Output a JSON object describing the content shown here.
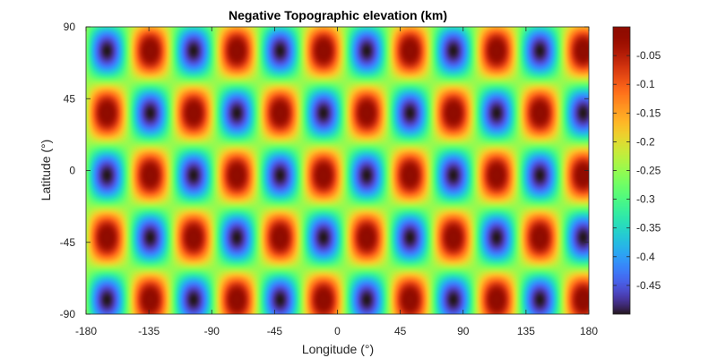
{
  "chart_data": {
    "type": "heatmap",
    "title": "Negative Topographic elevation (km)",
    "xlabel": "Longitude (°)",
    "ylabel": "Latitude (°)",
    "xlim": [
      -180,
      180
    ],
    "ylim": [
      -90,
      90
    ],
    "x_ticks": [
      -180,
      -135,
      -90,
      -45,
      0,
      45,
      90,
      135,
      180
    ],
    "x_tick_labels": [
      "-180",
      "-135",
      "-90",
      "-45",
      "0",
      "45",
      "90",
      "135",
      "180"
    ],
    "y_ticks": [
      -90,
      -45,
      0,
      45,
      90
    ],
    "y_tick_labels": [
      "-90",
      "-45",
      "0",
      "45",
      "90"
    ],
    "field": {
      "description_of_pattern": "egg-crate cosine grid",
      "mean": -0.25,
      "amplitude": 0.25,
      "lon_period_deg": 62,
      "lat_period_deg": 78,
      "max_lon_deg": -165,
      "max_lat_deg": 36
    },
    "colorbar": {
      "colormap": "turbo",
      "clim": [
        -0.5,
        0
      ],
      "ticks": [
        -0.45,
        -0.4,
        -0.35,
        -0.3,
        -0.25,
        -0.2,
        -0.15,
        -0.1,
        -0.05
      ],
      "tick_labels": [
        "-0.45",
        "-0.4",
        "-0.35",
        "-0.3",
        "-0.25",
        "-0.2",
        "-0.15",
        "-0.1",
        "-0.05"
      ]
    },
    "grid": false,
    "legend": "none"
  }
}
